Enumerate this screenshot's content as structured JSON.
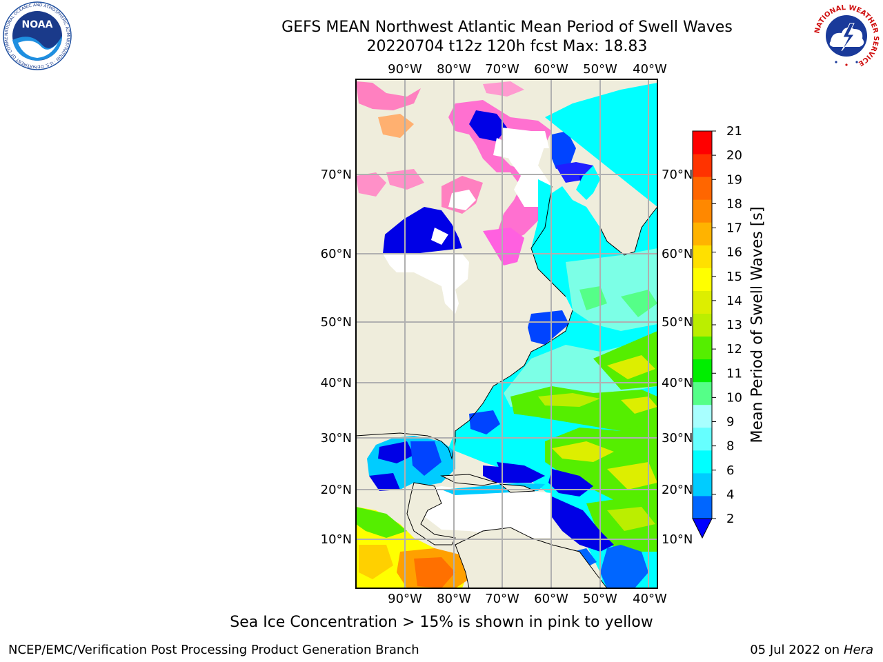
{
  "header": {
    "title_line1": "GEFS MEAN Northwest Atlantic Mean Period of Swell Waves",
    "title_line2": "20220704 t12z 120h fcst   Max: 18.83"
  },
  "logos": {
    "left": "NOAA",
    "left_ring_text": "NATIONAL OCEANIC AND ATMOSPHERIC ADMINISTRATION · U.S. DEPARTMENT OF COMMERCE",
    "right_ring_text": "NATIONAL WEATHER SERVICE"
  },
  "map": {
    "lon_ticks": [
      "90°W",
      "80°W",
      "70°W",
      "60°W",
      "50°W",
      "40°W"
    ],
    "lat_ticks": [
      "70°N",
      "60°N",
      "50°N",
      "40°N",
      "30°N",
      "20°N",
      "10°N"
    ],
    "colors": {
      "land": "#efeddc",
      "ice_pink": "#ff80c0",
      "ice_magenta": "#ff40ff",
      "ice_orange": "#ffa000",
      "no_data": "#ffffff",
      "gridline": "#b0b0b0"
    }
  },
  "colorbar": {
    "label": "Mean Period of Swell Waves [s]",
    "ticks": [
      "21",
      "20",
      "19",
      "18",
      "17",
      "16",
      "15",
      "14",
      "13",
      "12",
      "11",
      "10",
      "9",
      "8",
      "6",
      "4",
      "2"
    ],
    "colors": [
      "#0066ff",
      "#00ccff",
      "#00ffff",
      "#66ffff",
      "#a8ffff",
      "#55ff88",
      "#00ee00",
      "#55ee00",
      "#bbee00",
      "#ddee00",
      "#ffff00",
      "#ffe000",
      "#ffb300",
      "#ff8800",
      "#ff6600",
      "#ff3300",
      "#ff0000"
    ],
    "extend_min_color": "#0000ff"
  },
  "note": "Sea Ice Concentration > 15% is shown in pink to yellow",
  "footer": {
    "left": "NCEP/EMC/Verification Post Processing Product Generation Branch",
    "right_date": "05 Jul 2022 on ",
    "right_host": "Hera"
  }
}
